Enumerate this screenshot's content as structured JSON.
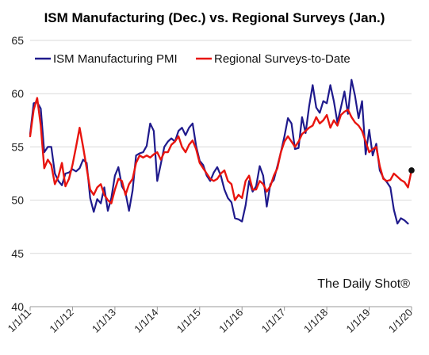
{
  "chart_data": {
    "type": "line",
    "title": "ISM Manufacturing (Dec.) vs. Regional Surveys (Jan.)",
    "watermark": "The Daily Shot®",
    "ylim": [
      40,
      65
    ],
    "yticks": [
      40,
      45,
      50,
      55,
      60,
      65
    ],
    "xlim": [
      "2011-01",
      "2020-01"
    ],
    "xticks": [
      "1/1/11",
      "1/1/12",
      "1/1/13",
      "1/1/14",
      "1/1/15",
      "1/1/16",
      "1/1/17",
      "1/1/18",
      "1/1/19",
      "1/1/20"
    ],
    "grid": "horizontal",
    "legend": "top-left",
    "series": [
      {
        "name": "ISM Manufacturing PMI",
        "color": "#1f1a8c",
        "points": [
          [
            "2011-01",
            56.2
          ],
          [
            "2011-02",
            59.1
          ],
          [
            "2011-03",
            59.2
          ],
          [
            "2011-04",
            58.6
          ],
          [
            "2011-05",
            54.5
          ],
          [
            "2011-06",
            55.0
          ],
          [
            "2011-07",
            55.0
          ],
          [
            "2011-08",
            52.5
          ],
          [
            "2011-09",
            51.8
          ],
          [
            "2011-10",
            51.4
          ],
          [
            "2011-11",
            52.5
          ],
          [
            "2011-12",
            52.6
          ],
          [
            "2012-01",
            52.9
          ],
          [
            "2012-02",
            52.7
          ],
          [
            "2012-03",
            53.0
          ],
          [
            "2012-04",
            53.8
          ],
          [
            "2012-05",
            53.5
          ],
          [
            "2012-06",
            50.2
          ],
          [
            "2012-07",
            48.9
          ],
          [
            "2012-08",
            50.1
          ],
          [
            "2012-09",
            49.7
          ],
          [
            "2012-10",
            51.2
          ],
          [
            "2012-11",
            49.0
          ],
          [
            "2012-12",
            50.2
          ],
          [
            "2013-01",
            52.3
          ],
          [
            "2013-02",
            53.1
          ],
          [
            "2013-03",
            51.3
          ],
          [
            "2013-04",
            50.7
          ],
          [
            "2013-05",
            49.0
          ],
          [
            "2013-06",
            50.9
          ],
          [
            "2013-07",
            54.2
          ],
          [
            "2013-08",
            54.4
          ],
          [
            "2013-09",
            54.5
          ],
          [
            "2013-10",
            55.1
          ],
          [
            "2013-11",
            57.2
          ],
          [
            "2013-12",
            56.5
          ],
          [
            "2014-01",
            51.8
          ],
          [
            "2014-02",
            53.4
          ],
          [
            "2014-03",
            55.0
          ],
          [
            "2014-04",
            55.5
          ],
          [
            "2014-05",
            55.8
          ],
          [
            "2014-06",
            55.5
          ],
          [
            "2014-07",
            56.5
          ],
          [
            "2014-08",
            56.8
          ],
          [
            "2014-09",
            56.1
          ],
          [
            "2014-10",
            56.8
          ],
          [
            "2014-11",
            57.2
          ],
          [
            "2014-12",
            55.1
          ],
          [
            "2015-01",
            53.7
          ],
          [
            "2015-02",
            53.3
          ],
          [
            "2015-03",
            52.3
          ],
          [
            "2015-04",
            51.8
          ],
          [
            "2015-05",
            52.6
          ],
          [
            "2015-06",
            53.1
          ],
          [
            "2015-07",
            52.3
          ],
          [
            "2015-08",
            51.0
          ],
          [
            "2015-09",
            50.2
          ],
          [
            "2015-10",
            49.8
          ],
          [
            "2015-11",
            48.3
          ],
          [
            "2015-12",
            48.2
          ],
          [
            "2016-01",
            48.0
          ],
          [
            "2016-02",
            49.5
          ],
          [
            "2016-03",
            51.8
          ],
          [
            "2016-04",
            50.8
          ],
          [
            "2016-05",
            51.3
          ],
          [
            "2016-06",
            53.2
          ],
          [
            "2016-07",
            52.3
          ],
          [
            "2016-08",
            49.4
          ],
          [
            "2016-09",
            51.5
          ],
          [
            "2016-10",
            51.9
          ],
          [
            "2016-11",
            53.2
          ],
          [
            "2016-12",
            54.5
          ],
          [
            "2017-01",
            56.0
          ],
          [
            "2017-02",
            57.7
          ],
          [
            "2017-03",
            57.2
          ],
          [
            "2017-04",
            54.8
          ],
          [
            "2017-05",
            54.9
          ],
          [
            "2017-06",
            57.8
          ],
          [
            "2017-07",
            56.3
          ],
          [
            "2017-08",
            58.8
          ],
          [
            "2017-09",
            60.8
          ],
          [
            "2017-10",
            58.7
          ],
          [
            "2017-11",
            58.2
          ],
          [
            "2017-12",
            59.3
          ],
          [
            "2018-01",
            59.1
          ],
          [
            "2018-02",
            60.8
          ],
          [
            "2018-03",
            59.3
          ],
          [
            "2018-04",
            57.3
          ],
          [
            "2018-05",
            58.7
          ],
          [
            "2018-06",
            60.2
          ],
          [
            "2018-07",
            58.1
          ],
          [
            "2018-08",
            61.3
          ],
          [
            "2018-09",
            59.8
          ],
          [
            "2018-10",
            57.7
          ],
          [
            "2018-11",
            59.3
          ],
          [
            "2018-12",
            54.3
          ],
          [
            "2019-01",
            56.6
          ],
          [
            "2019-02",
            54.2
          ],
          [
            "2019-03",
            55.3
          ],
          [
            "2019-04",
            52.8
          ],
          [
            "2019-05",
            52.1
          ],
          [
            "2019-06",
            51.7
          ],
          [
            "2019-07",
            51.2
          ],
          [
            "2019-08",
            49.1
          ],
          [
            "2019-09",
            47.8
          ],
          [
            "2019-10",
            48.3
          ],
          [
            "2019-11",
            48.1
          ],
          [
            "2019-12",
            47.8
          ]
        ]
      },
      {
        "name": "Regional Surveys-to-Date",
        "color": "#e8150f",
        "points": [
          [
            "2011-01",
            56.0
          ],
          [
            "2011-02",
            58.5
          ],
          [
            "2011-03",
            59.6
          ],
          [
            "2011-04",
            57.0
          ],
          [
            "2011-05",
            53.0
          ],
          [
            "2011-06",
            53.8
          ],
          [
            "2011-07",
            53.3
          ],
          [
            "2011-08",
            51.5
          ],
          [
            "2011-09",
            52.2
          ],
          [
            "2011-10",
            53.5
          ],
          [
            "2011-11",
            51.3
          ],
          [
            "2011-12",
            52.0
          ],
          [
            "2012-01",
            53.3
          ],
          [
            "2012-02",
            55.0
          ],
          [
            "2012-03",
            56.8
          ],
          [
            "2012-04",
            55.0
          ],
          [
            "2012-05",
            53.0
          ],
          [
            "2012-06",
            51.0
          ],
          [
            "2012-07",
            50.5
          ],
          [
            "2012-08",
            51.2
          ],
          [
            "2012-09",
            51.5
          ],
          [
            "2012-10",
            50.5
          ],
          [
            "2012-11",
            50.0
          ],
          [
            "2012-12",
            49.7
          ],
          [
            "2013-01",
            51.0
          ],
          [
            "2013-02",
            52.0
          ],
          [
            "2013-03",
            51.8
          ],
          [
            "2013-04",
            50.5
          ],
          [
            "2013-05",
            51.5
          ],
          [
            "2013-06",
            52.0
          ],
          [
            "2013-07",
            53.5
          ],
          [
            "2013-08",
            54.2
          ],
          [
            "2013-09",
            54.0
          ],
          [
            "2013-10",
            54.2
          ],
          [
            "2013-11",
            54.0
          ],
          [
            "2013-12",
            54.3
          ],
          [
            "2014-01",
            54.5
          ],
          [
            "2014-02",
            53.8
          ],
          [
            "2014-03",
            54.5
          ],
          [
            "2014-04",
            54.5
          ],
          [
            "2014-05",
            55.2
          ],
          [
            "2014-06",
            55.5
          ],
          [
            "2014-07",
            56.0
          ],
          [
            "2014-08",
            55.0
          ],
          [
            "2014-09",
            54.5
          ],
          [
            "2014-10",
            55.2
          ],
          [
            "2014-11",
            55.6
          ],
          [
            "2014-12",
            54.8
          ],
          [
            "2015-01",
            53.5
          ],
          [
            "2015-02",
            53.0
          ],
          [
            "2015-03",
            52.5
          ],
          [
            "2015-04",
            52.0
          ],
          [
            "2015-05",
            51.8
          ],
          [
            "2015-06",
            52.0
          ],
          [
            "2015-07",
            52.5
          ],
          [
            "2015-08",
            52.8
          ],
          [
            "2015-09",
            51.8
          ],
          [
            "2015-10",
            51.5
          ],
          [
            "2015-11",
            50.0
          ],
          [
            "2015-12",
            50.5
          ],
          [
            "2016-01",
            50.2
          ],
          [
            "2016-02",
            51.8
          ],
          [
            "2016-03",
            52.3
          ],
          [
            "2016-04",
            51.0
          ],
          [
            "2016-05",
            51.0
          ],
          [
            "2016-06",
            51.8
          ],
          [
            "2016-07",
            51.5
          ],
          [
            "2016-08",
            50.8
          ],
          [
            "2016-09",
            51.3
          ],
          [
            "2016-10",
            52.3
          ],
          [
            "2016-11",
            53.0
          ],
          [
            "2016-12",
            54.5
          ],
          [
            "2017-01",
            55.5
          ],
          [
            "2017-02",
            56.0
          ],
          [
            "2017-03",
            55.5
          ],
          [
            "2017-04",
            55.0
          ],
          [
            "2017-05",
            55.5
          ],
          [
            "2017-06",
            56.2
          ],
          [
            "2017-07",
            56.5
          ],
          [
            "2017-08",
            56.8
          ],
          [
            "2017-09",
            57.0
          ],
          [
            "2017-10",
            57.8
          ],
          [
            "2017-11",
            57.2
          ],
          [
            "2017-12",
            57.5
          ],
          [
            "2018-01",
            58.0
          ],
          [
            "2018-02",
            56.8
          ],
          [
            "2018-03",
            57.5
          ],
          [
            "2018-04",
            57.0
          ],
          [
            "2018-05",
            58.0
          ],
          [
            "2018-06",
            58.3
          ],
          [
            "2018-07",
            58.5
          ],
          [
            "2018-08",
            57.8
          ],
          [
            "2018-09",
            57.3
          ],
          [
            "2018-10",
            57.0
          ],
          [
            "2018-11",
            56.5
          ],
          [
            "2018-12",
            55.5
          ],
          [
            "2019-01",
            54.5
          ],
          [
            "2019-02",
            54.8
          ],
          [
            "2019-03",
            55.0
          ],
          [
            "2019-04",
            53.2
          ],
          [
            "2019-05",
            52.0
          ],
          [
            "2019-06",
            51.8
          ],
          [
            "2019-07",
            51.9
          ],
          [
            "2019-08",
            52.5
          ],
          [
            "2019-09",
            52.2
          ],
          [
            "2019-10",
            51.9
          ],
          [
            "2019-11",
            51.7
          ],
          [
            "2019-12",
            51.2
          ],
          [
            "2020-01",
            52.8
          ]
        ],
        "highlight_last": true
      }
    ]
  }
}
